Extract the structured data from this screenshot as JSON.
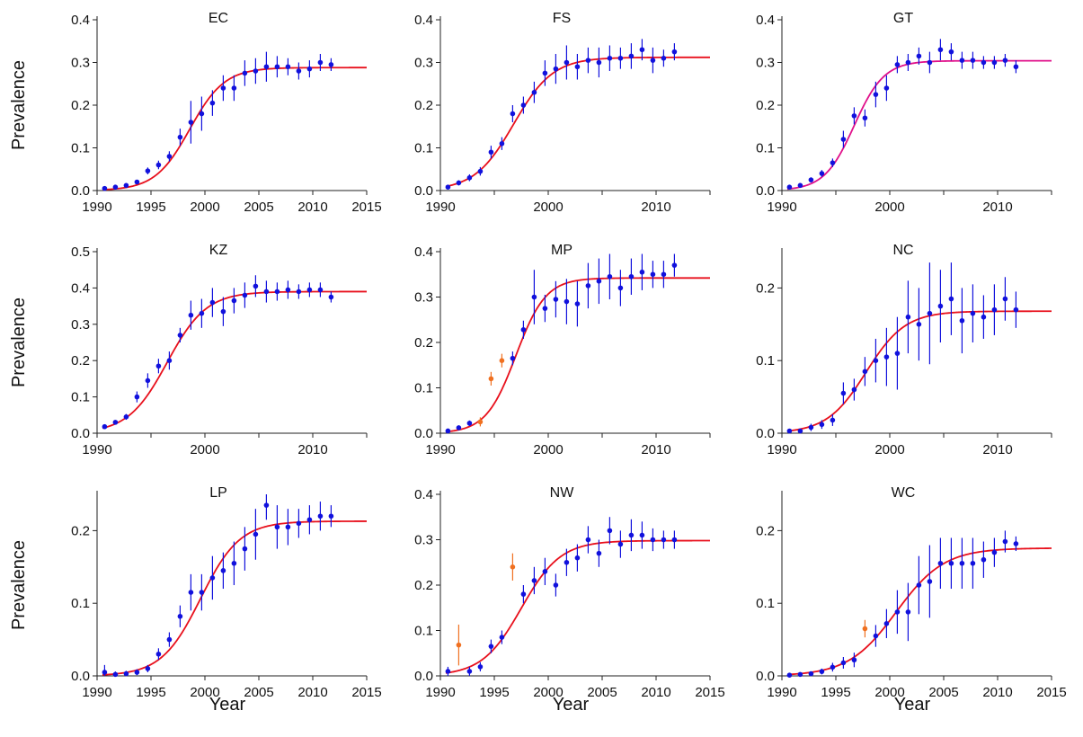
{
  "figure": {
    "ylabel": "Prevalence",
    "xlabel": "Year"
  },
  "colors": {
    "fit_curve": "#e8101c",
    "fit_curve_gt": "#e0108a",
    "points": "#1111dd",
    "outlier_points": "#f07020",
    "axis": "#222222"
  },
  "chart_data": [
    {
      "type": "scatter",
      "title": "EC",
      "xlim": [
        1990,
        2015
      ],
      "ylim": [
        0,
        0.4
      ],
      "xticks": [
        "1990",
        "1995",
        "2000",
        "2005",
        "2010",
        "2015"
      ],
      "yticks": [
        "0.0",
        "0.1",
        "0.2",
        "0.3",
        "0.4"
      ],
      "fit": {
        "type": "logistic",
        "plateau": 0.288,
        "midpoint": 1998.6,
        "rate": 0.62
      },
      "series": [
        {
          "x": [
            1990.7,
            1991.7,
            1992.7,
            1993.7,
            1994.7,
            1995.7,
            1996.7,
            1997.7,
            1998.7,
            1999.7,
            2000.7,
            2001.7,
            2002.7,
            2003.7,
            2004.7,
            2005.7,
            2006.7,
            2007.7,
            2008.7,
            2009.7,
            2010.7,
            2011.7
          ],
          "y": [
            0.005,
            0.008,
            0.012,
            0.02,
            0.046,
            0.06,
            0.08,
            0.125,
            0.16,
            0.18,
            0.205,
            0.24,
            0.24,
            0.275,
            0.28,
            0.29,
            0.29,
            0.29,
            0.28,
            0.285,
            0.3,
            0.295
          ],
          "err": [
            0.004,
            0.004,
            0.004,
            0.005,
            0.008,
            0.01,
            0.012,
            0.02,
            0.05,
            0.04,
            0.03,
            0.03,
            0.03,
            0.03,
            0.03,
            0.035,
            0.025,
            0.02,
            0.02,
            0.02,
            0.02,
            0.015
          ]
        }
      ]
    },
    {
      "type": "scatter",
      "title": "FS",
      "xlim": [
        1990,
        2015
      ],
      "ylim": [
        0,
        0.4
      ],
      "xticks": [
        "1990",
        "2000",
        "2010"
      ],
      "yticks": [
        "0.0",
        "0.1",
        "0.2",
        "0.3",
        "0.4"
      ],
      "fit": {
        "type": "logistic",
        "plateau": 0.312,
        "midpoint": 1996.8,
        "rate": 0.55
      },
      "series": [
        {
          "x": [
            1990.7,
            1991.7,
            1992.7,
            1993.7,
            1994.7,
            1995.7,
            1996.7,
            1997.7,
            1998.7,
            1999.7,
            2000.7,
            2001.7,
            2002.7,
            2003.7,
            2004.7,
            2005.7,
            2006.7,
            2007.7,
            2008.7,
            2009.7,
            2010.7,
            2011.7
          ],
          "y": [
            0.008,
            0.018,
            0.03,
            0.045,
            0.09,
            0.11,
            0.18,
            0.2,
            0.23,
            0.275,
            0.285,
            0.3,
            0.29,
            0.305,
            0.3,
            0.31,
            0.31,
            0.315,
            0.33,
            0.305,
            0.31,
            0.325
          ],
          "err": [
            0.005,
            0.006,
            0.008,
            0.01,
            0.015,
            0.015,
            0.02,
            0.02,
            0.025,
            0.03,
            0.035,
            0.04,
            0.03,
            0.03,
            0.035,
            0.03,
            0.025,
            0.03,
            0.025,
            0.03,
            0.02,
            0.02
          ]
        }
      ]
    },
    {
      "type": "scatter",
      "title": "GT",
      "xlim": [
        1990,
        2015
      ],
      "ylim": [
        0,
        0.4
      ],
      "xticks": [
        "1990",
        "2000",
        "2010"
      ],
      "yticks": [
        "0.0",
        "0.1",
        "0.2",
        "0.3",
        "0.4"
      ],
      "fit": {
        "type": "logistic",
        "plateau": 0.304,
        "midpoint": 1996.7,
        "rate": 0.72
      },
      "curve_color": "fit_curve_gt",
      "series": [
        {
          "x": [
            1990.7,
            1991.7,
            1992.7,
            1993.7,
            1994.7,
            1995.7,
            1996.7,
            1997.7,
            1998.7,
            1999.7,
            2000.7,
            2001.7,
            2002.7,
            2003.7,
            2004.7,
            2005.7,
            2006.7,
            2007.7,
            2008.7,
            2009.7,
            2010.7,
            2011.7
          ],
          "y": [
            0.008,
            0.012,
            0.025,
            0.04,
            0.065,
            0.12,
            0.175,
            0.17,
            0.225,
            0.24,
            0.295,
            0.3,
            0.315,
            0.3,
            0.33,
            0.325,
            0.305,
            0.305,
            0.3,
            0.3,
            0.305,
            0.29
          ],
          "err": [
            0.004,
            0.005,
            0.006,
            0.008,
            0.01,
            0.02,
            0.02,
            0.02,
            0.03,
            0.03,
            0.02,
            0.02,
            0.02,
            0.025,
            0.025,
            0.02,
            0.02,
            0.02,
            0.015,
            0.015,
            0.015,
            0.015
          ]
        }
      ]
    },
    {
      "type": "scatter",
      "title": "KZ",
      "xlim": [
        1990,
        2015
      ],
      "ylim": [
        0,
        0.5
      ],
      "xticks": [
        "1990",
        "2000",
        "2010"
      ],
      "yticks": [
        "0.0",
        "0.1",
        "0.2",
        "0.3",
        "0.4",
        "0.5"
      ],
      "fit": {
        "type": "logistic",
        "plateau": 0.39,
        "midpoint": 1996.5,
        "rate": 0.55
      },
      "series": [
        {
          "x": [
            1990.7,
            1991.7,
            1992.7,
            1993.7,
            1994.7,
            1995.7,
            1996.7,
            1997.7,
            1998.7,
            1999.7,
            2000.7,
            2001.7,
            2002.7,
            2003.7,
            2004.7,
            2005.7,
            2006.7,
            2007.7,
            2008.7,
            2009.7,
            2010.7,
            2011.7
          ],
          "y": [
            0.018,
            0.03,
            0.045,
            0.1,
            0.145,
            0.185,
            0.2,
            0.27,
            0.325,
            0.33,
            0.36,
            0.335,
            0.365,
            0.38,
            0.405,
            0.39,
            0.39,
            0.395,
            0.39,
            0.395,
            0.395,
            0.375
          ],
          "err": [
            0.005,
            0.006,
            0.008,
            0.015,
            0.02,
            0.02,
            0.025,
            0.02,
            0.04,
            0.04,
            0.04,
            0.04,
            0.035,
            0.035,
            0.03,
            0.03,
            0.025,
            0.025,
            0.02,
            0.02,
            0.02,
            0.015
          ]
        }
      ]
    },
    {
      "type": "scatter",
      "title": "MP",
      "xlim": [
        1990,
        2015
      ],
      "ylim": [
        0,
        0.4
      ],
      "xticks": [
        "1990",
        "2000",
        "2010"
      ],
      "yticks": [
        "0.0",
        "0.1",
        "0.2",
        "0.3",
        "0.4"
      ],
      "fit": {
        "type": "logistic",
        "plateau": 0.342,
        "midpoint": 1997.0,
        "rate": 0.72
      },
      "series": [
        {
          "x": [
            1990.7,
            1991.7,
            1992.7,
            1996.7,
            1997.7,
            1998.7,
            1999.7,
            2000.7,
            2001.7,
            2002.7,
            2003.7,
            2004.7,
            2005.7,
            2006.7,
            2007.7,
            2008.7,
            2009.7,
            2010.7,
            2011.7
          ],
          "y": [
            0.005,
            0.012,
            0.022,
            0.165,
            0.228,
            0.3,
            0.275,
            0.295,
            0.29,
            0.285,
            0.325,
            0.335,
            0.345,
            0.32,
            0.345,
            0.355,
            0.35,
            0.35,
            0.37
          ],
          "err": [
            0.004,
            0.005,
            0.006,
            0.015,
            0.02,
            0.06,
            0.03,
            0.04,
            0.05,
            0.05,
            0.05,
            0.05,
            0.05,
            0.04,
            0.04,
            0.04,
            0.03,
            0.03,
            0.025
          ]
        },
        {
          "outlier": true,
          "x": [
            1993.7,
            1994.7,
            1995.7
          ],
          "y": [
            0.025,
            0.12,
            0.16
          ],
          "err": [
            0.01,
            0.015,
            0.015
          ]
        }
      ]
    },
    {
      "type": "scatter",
      "title": "NC",
      "xlim": [
        1990,
        2015
      ],
      "ylim": [
        0,
        0.25
      ],
      "xticks": [
        "1990",
        "2000",
        "2010"
      ],
      "yticks": [
        "0.0",
        "0.1",
        "0.2"
      ],
      "fit": {
        "type": "logistic",
        "plateau": 0.168,
        "midpoint": 1997.8,
        "rate": 0.55
      },
      "series": [
        {
          "x": [
            1990.7,
            1991.7,
            1992.7,
            1993.7,
            1994.7,
            1995.7,
            1996.7,
            1997.7,
            1998.7,
            1999.7,
            2000.7,
            2001.7,
            2002.7,
            2003.7,
            2004.7,
            2005.7,
            2006.7,
            2007.7,
            2008.7,
            2009.7,
            2010.7,
            2011.7
          ],
          "y": [
            0.003,
            0.003,
            0.008,
            0.012,
            0.018,
            0.055,
            0.06,
            0.085,
            0.1,
            0.105,
            0.11,
            0.16,
            0.15,
            0.165,
            0.175,
            0.185,
            0.155,
            0.165,
            0.16,
            0.17,
            0.185,
            0.17
          ],
          "err": [
            0.003,
            0.003,
            0.005,
            0.006,
            0.008,
            0.015,
            0.015,
            0.02,
            0.03,
            0.04,
            0.05,
            0.05,
            0.05,
            0.07,
            0.05,
            0.05,
            0.045,
            0.04,
            0.03,
            0.035,
            0.03,
            0.025
          ]
        }
      ]
    },
    {
      "type": "scatter",
      "title": "LP",
      "xlim": [
        1990,
        2015
      ],
      "ylim": [
        0,
        0.25
      ],
      "xticks": [
        "1990",
        "1995",
        "2000",
        "2005",
        "2010",
        "2015"
      ],
      "yticks": [
        "0.0",
        "0.1",
        "0.2"
      ],
      "fit": {
        "type": "logistic",
        "plateau": 0.213,
        "midpoint": 1999.6,
        "rate": 0.55
      },
      "series": [
        {
          "x": [
            1990.7,
            1991.7,
            1992.7,
            1993.7,
            1994.7,
            1995.7,
            1996.7,
            1997.7,
            1998.7,
            1999.7,
            2000.7,
            2001.7,
            2002.7,
            2003.7,
            2004.7,
            2005.7,
            2006.7,
            2007.7,
            2008.7,
            2009.7,
            2010.7,
            2011.7
          ],
          "y": [
            0.005,
            0.002,
            0.003,
            0.005,
            0.01,
            0.03,
            0.05,
            0.082,
            0.115,
            0.115,
            0.135,
            0.145,
            0.155,
            0.175,
            0.195,
            0.235,
            0.205,
            0.205,
            0.21,
            0.215,
            0.22,
            0.22
          ],
          "err": [
            0.01,
            0.004,
            0.004,
            0.004,
            0.005,
            0.008,
            0.01,
            0.015,
            0.025,
            0.025,
            0.03,
            0.025,
            0.03,
            0.03,
            0.035,
            0.02,
            0.03,
            0.025,
            0.02,
            0.02,
            0.02,
            0.015
          ]
        }
      ]
    },
    {
      "type": "scatter",
      "title": "NW",
      "xlim": [
        1990,
        2015
      ],
      "ylim": [
        0,
        0.4
      ],
      "xticks": [
        "1990",
        "1995",
        "2000",
        "2005",
        "2010",
        "2015"
      ],
      "yticks": [
        "0.0",
        "0.1",
        "0.2",
        "0.3",
        "0.4"
      ],
      "fit": {
        "type": "logistic",
        "plateau": 0.298,
        "midpoint": 1997.5,
        "rate": 0.55
      },
      "series": [
        {
          "x": [
            1990.7,
            1992.7,
            1993.7,
            1994.7,
            1995.7,
            1997.7,
            1998.7,
            1999.7,
            2000.7,
            2001.7,
            2002.7,
            2003.7,
            2004.7,
            2005.7,
            2006.7,
            2007.7,
            2008.7,
            2009.7,
            2010.7,
            2011.7
          ],
          "y": [
            0.01,
            0.01,
            0.02,
            0.065,
            0.085,
            0.18,
            0.21,
            0.23,
            0.2,
            0.25,
            0.26,
            0.3,
            0.27,
            0.32,
            0.29,
            0.31,
            0.31,
            0.3,
            0.3,
            0.3
          ],
          "err": [
            0.01,
            0.01,
            0.01,
            0.015,
            0.015,
            0.02,
            0.03,
            0.03,
            0.025,
            0.03,
            0.03,
            0.03,
            0.03,
            0.03,
            0.03,
            0.035,
            0.03,
            0.025,
            0.02,
            0.02
          ]
        },
        {
          "outlier": true,
          "x": [
            1991.7,
            1996.7
          ],
          "y": [
            0.068,
            0.24
          ],
          "err": [
            0.045,
            0.03
          ]
        }
      ]
    },
    {
      "type": "scatter",
      "title": "WC",
      "xlim": [
        1990,
        2015
      ],
      "ylim": [
        0,
        0.25
      ],
      "xticks": [
        "1990",
        "1995",
        "2000",
        "2005",
        "2010",
        "2015"
      ],
      "yticks": [
        "0.0",
        "0.1",
        "0.2"
      ],
      "fit": {
        "type": "logistic",
        "plateau": 0.176,
        "midpoint": 2000.6,
        "rate": 0.45
      },
      "series": [
        {
          "x": [
            1990.7,
            1991.7,
            1992.7,
            1993.7,
            1994.7,
            1995.7,
            1996.7,
            1998.7,
            1999.7,
            2000.7,
            2001.7,
            2002.7,
            2003.7,
            2004.7,
            2005.7,
            2006.7,
            2007.7,
            2008.7,
            2009.7,
            2010.7,
            2011.7
          ],
          "y": [
            0.001,
            0.002,
            0.003,
            0.006,
            0.012,
            0.018,
            0.022,
            0.055,
            0.072,
            0.088,
            0.088,
            0.125,
            0.13,
            0.155,
            0.155,
            0.155,
            0.155,
            0.16,
            0.17,
            0.185,
            0.182
          ],
          "err": [
            0.002,
            0.002,
            0.003,
            0.004,
            0.006,
            0.008,
            0.01,
            0.015,
            0.02,
            0.03,
            0.04,
            0.04,
            0.05,
            0.035,
            0.035,
            0.035,
            0.035,
            0.025,
            0.02,
            0.015,
            0.01
          ]
        },
        {
          "outlier": true,
          "x": [
            1997.7
          ],
          "y": [
            0.065
          ],
          "err": [
            0.012
          ]
        }
      ]
    }
  ]
}
